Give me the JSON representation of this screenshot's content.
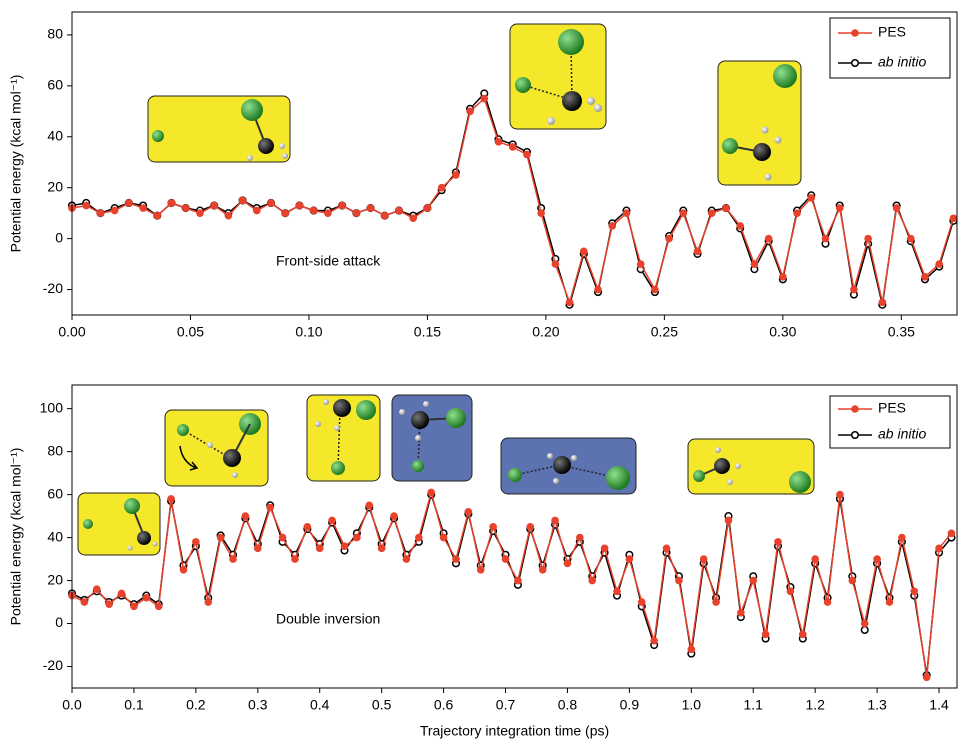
{
  "chart_data": [
    {
      "type": "line",
      "annotation": "Front-side attack",
      "y_label": "Potential energy (kcal mol⁻¹)",
      "xlim": [
        0,
        0.3735
      ],
      "ylim": [
        -30,
        89
      ],
      "xticks": [
        {
          "value": 0,
          "label": "0.00"
        },
        0.05,
        {
          "value": 0.1,
          "label": "0.10"
        },
        0.15,
        {
          "value": 0.2,
          "label": "0.20"
        },
        0.25,
        {
          "value": 0.3,
          "label": "0.30"
        },
        0.35
      ],
      "yticks": [
        -20,
        0,
        20,
        40,
        60,
        80
      ],
      "x": [
        0,
        0.006,
        0.012,
        0.018,
        0.024,
        0.03,
        0.036,
        0.042,
        0.048,
        0.054,
        0.06,
        0.066,
        0.072,
        0.078,
        0.084,
        0.09,
        0.096,
        0.102,
        0.108,
        0.114,
        0.12,
        0.126,
        0.132,
        0.138,
        0.144,
        0.15,
        0.156,
        0.162,
        0.168,
        0.174,
        0.18,
        0.186,
        0.192,
        0.198,
        0.204,
        0.21,
        0.216,
        0.222,
        0.228,
        0.234,
        0.24,
        0.246,
        0.252,
        0.258,
        0.264,
        0.27,
        0.276,
        0.282,
        0.288,
        0.294,
        0.3,
        0.306,
        0.312,
        0.318,
        0.324,
        0.33,
        0.336,
        0.342,
        0.348,
        0.354,
        0.36,
        0.366,
        0.372
      ],
      "series": [
        {
          "name": "PES",
          "color": "#e8412c",
          "values": [
            12,
            13,
            10,
            11,
            14,
            12,
            9,
            14,
            12,
            10,
            13,
            9,
            15,
            11,
            14,
            10,
            13,
            11,
            10,
            13,
            10,
            12,
            9,
            11,
            8,
            12,
            20,
            25,
            50,
            55,
            38,
            36,
            33,
            10,
            -10,
            -25,
            -5,
            -20,
            5,
            10,
            -10,
            -20,
            0,
            10,
            -5,
            10,
            12,
            5,
            -10,
            0,
            -15,
            10,
            16,
            0,
            12,
            -20,
            0,
            -25,
            12,
            0,
            -15,
            -10,
            8
          ]
        },
        {
          "name": "ab initio",
          "color": "#000000",
          "values": [
            13,
            14,
            10,
            12,
            14,
            13,
            9,
            14,
            12,
            11,
            13,
            10,
            15,
            12,
            14,
            10,
            13,
            11,
            11,
            13,
            10,
            12,
            9,
            11,
            9,
            12,
            19,
            26,
            51,
            57,
            39,
            37,
            34,
            12,
            -8,
            -26,
            -6,
            -21,
            6,
            11,
            -12,
            -21,
            1,
            11,
            -6,
            11,
            12,
            4,
            -12,
            -1,
            -16,
            11,
            17,
            -2,
            13,
            -22,
            -2,
            -26,
            13,
            -1,
            -16,
            -11,
            7
          ]
        }
      ],
      "legend": "upper right"
    },
    {
      "type": "line",
      "annotation": "Double inversion",
      "x_label": "Trajectory integration time (ps)",
      "y_label": "Potential energy (kcal mol⁻¹)",
      "xlim": [
        0,
        1.429
      ],
      "ylim": [
        -30,
        111
      ],
      "xticks": [
        {
          "value": 0,
          "label": "0.0"
        },
        0.1,
        0.2,
        0.3,
        0.4,
        0.5,
        0.6,
        0.7,
        0.8,
        0.9,
        {
          "value": 1,
          "label": "1.0"
        },
        1.1,
        1.2,
        1.3,
        1.4
      ],
      "yticks": [
        -20,
        0,
        20,
        40,
        60,
        80,
        100
      ],
      "x": [
        0,
        0.02,
        0.04,
        0.06,
        0.08,
        0.1,
        0.12,
        0.14,
        0.16,
        0.18,
        0.2,
        0.22,
        0.24,
        0.26,
        0.28,
        0.3,
        0.32,
        0.34,
        0.36,
        0.38,
        0.4,
        0.42,
        0.44,
        0.46,
        0.48,
        0.5,
        0.52,
        0.54,
        0.56,
        0.58,
        0.6,
        0.62,
        0.64,
        0.66,
        0.68,
        0.7,
        0.72,
        0.74,
        0.76,
        0.78,
        0.8,
        0.82,
        0.84,
        0.86,
        0.88,
        0.9,
        0.92,
        0.94,
        0.96,
        0.98,
        1,
        1.02,
        1.04,
        1.06,
        1.08,
        1.1,
        1.12,
        1.14,
        1.16,
        1.18,
        1.2,
        1.22,
        1.24,
        1.26,
        1.28,
        1.3,
        1.32,
        1.34,
        1.36,
        1.38,
        1.4,
        1.42
      ],
      "series": [
        {
          "name": "PES",
          "color": "#e8412c",
          "values": [
            13,
            10,
            16,
            9,
            14,
            8,
            12,
            8,
            58,
            25,
            38,
            10,
            40,
            30,
            50,
            35,
            54,
            40,
            30,
            45,
            35,
            48,
            36,
            40,
            55,
            35,
            50,
            30,
            40,
            61,
            40,
            30,
            52,
            25,
            45,
            30,
            20,
            45,
            25,
            48,
            28,
            40,
            20,
            35,
            15,
            30,
            10,
            -8,
            35,
            20,
            -12,
            30,
            10,
            48,
            5,
            20,
            -5,
            38,
            15,
            -5,
            30,
            10,
            60,
            20,
            0,
            30,
            10,
            40,
            15,
            -25,
            35,
            42
          ]
        },
        {
          "name": "ab initio",
          "color": "#000000",
          "values": [
            14,
            11,
            15,
            10,
            13,
            9,
            13,
            9,
            57,
            27,
            36,
            12,
            41,
            32,
            49,
            37,
            55,
            38,
            32,
            44,
            37,
            47,
            34,
            42,
            54,
            37,
            49,
            32,
            38,
            60,
            42,
            28,
            51,
            27,
            43,
            32,
            18,
            44,
            27,
            46,
            30,
            38,
            22,
            33,
            13,
            32,
            8,
            -10,
            33,
            22,
            -14,
            28,
            12,
            50,
            3,
            22,
            -7,
            36,
            17,
            -7,
            28,
            12,
            58,
            22,
            -3,
            28,
            12,
            38,
            13,
            -24,
            33,
            40
          ]
        }
      ],
      "legend": "upper right"
    }
  ]
}
